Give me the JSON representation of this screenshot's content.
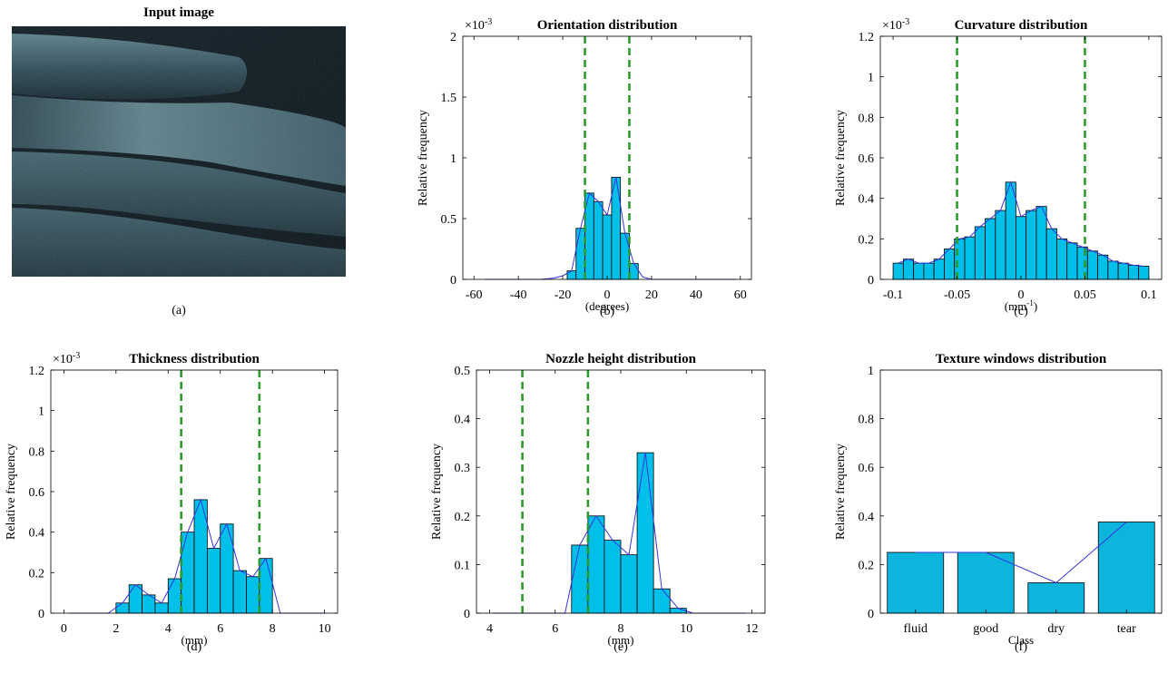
{
  "colors": {
    "bar_fill": "#00BFE8",
    "bar_fill_f": "#0CB5DC",
    "bar_stroke": "#000000",
    "poly": "#3535E0",
    "threshold": "#2E9A2E"
  },
  "photo": {
    "title": "Input image",
    "caption": "(a)"
  },
  "chart_data": [
    {
      "id": "b",
      "type": "bar",
      "title": "Orientation distribution",
      "xlabel": "(degrees)",
      "ylabel": "Relative frequency",
      "exponent": "×10",
      "exponent_power": "-3",
      "caption": "(b)",
      "xlim": [
        -65,
        65
      ],
      "ylim": [
        0,
        2
      ],
      "xticks": [
        -60,
        -40,
        -20,
        0,
        20,
        40,
        60
      ],
      "yticks": [
        0,
        0.5,
        1,
        1.5,
        2
      ],
      "ytick_labels": [
        "0",
        "0.5",
        "1",
        "1.5",
        "2"
      ],
      "bin_width": 4,
      "bin_centers": [
        -16,
        -12,
        -8,
        -4,
        0,
        4,
        8,
        12,
        16
      ],
      "values": [
        0.07,
        0.42,
        0.71,
        0.64,
        0.53,
        0.84,
        0.38,
        0.13,
        0.0
      ],
      "curve_x": [
        -55,
        -40,
        -30,
        -24,
        -20,
        -16,
        -12,
        -8,
        -4,
        0,
        4,
        8,
        12,
        16,
        20,
        25,
        40,
        58
      ],
      "curve_y": [
        0.0,
        0.0,
        0.0,
        0.01,
        0.03,
        0.07,
        0.42,
        0.71,
        0.64,
        0.53,
        0.84,
        0.38,
        0.13,
        0.02,
        0.0,
        0.0,
        0.0,
        0.0
      ],
      "thresholds": [
        -10,
        10
      ]
    },
    {
      "id": "c",
      "type": "bar",
      "title": "Curvature distribution",
      "xlabel": "(mm",
      "xlabel_power": "-1",
      "xlabel_suffix": ")",
      "ylabel": "Relative frequency",
      "exponent": "×10",
      "exponent_power": "-3",
      "caption": "(c)",
      "xlim": [
        -0.11,
        0.11
      ],
      "ylim": [
        0,
        1.2
      ],
      "xticks": [
        -0.1,
        -0.05,
        0,
        0.05,
        0.1
      ],
      "xtick_labels": [
        "-0.1",
        "-0.05",
        "0",
        "0.05",
        "0.1"
      ],
      "yticks": [
        0,
        0.2,
        0.4,
        0.6,
        0.8,
        1,
        1.2
      ],
      "ytick_labels": [
        "0",
        "0.2",
        "0.4",
        "0.6",
        "0.8",
        "1",
        "1.2"
      ],
      "bin_width": 0.008,
      "bin_centers": [
        -0.096,
        -0.088,
        -0.08,
        -0.072,
        -0.064,
        -0.056,
        -0.048,
        -0.04,
        -0.032,
        -0.024,
        -0.016,
        -0.008,
        0.0,
        0.008,
        0.016,
        0.024,
        0.032,
        0.04,
        0.048,
        0.056,
        0.064,
        0.072,
        0.08,
        0.088,
        0.096
      ],
      "values": [
        0.08,
        0.1,
        0.08,
        0.08,
        0.1,
        0.15,
        0.2,
        0.21,
        0.26,
        0.3,
        0.34,
        0.48,
        0.31,
        0.34,
        0.36,
        0.25,
        0.2,
        0.18,
        0.16,
        0.14,
        0.12,
        0.09,
        0.08,
        0.07,
        0.065
      ],
      "curve_x": [
        -0.096,
        -0.088,
        -0.08,
        -0.072,
        -0.064,
        -0.056,
        -0.048,
        -0.04,
        -0.032,
        -0.024,
        -0.016,
        -0.008,
        0.0,
        0.008,
        0.016,
        0.024,
        0.032,
        0.04,
        0.048,
        0.056,
        0.064,
        0.072,
        0.08,
        0.088,
        0.096
      ],
      "curve_y": [
        0.08,
        0.1,
        0.08,
        0.08,
        0.1,
        0.15,
        0.2,
        0.21,
        0.26,
        0.3,
        0.34,
        0.48,
        0.31,
        0.34,
        0.36,
        0.25,
        0.2,
        0.18,
        0.16,
        0.14,
        0.12,
        0.09,
        0.08,
        0.07,
        0.065
      ],
      "thresholds": [
        -0.05,
        0.05
      ]
    },
    {
      "id": "d",
      "type": "bar",
      "title": "Thickness distribution",
      "xlabel": "(mm)",
      "ylabel": "Relative frequency",
      "exponent": "×10",
      "exponent_power": "-3",
      "caption": "(d)",
      "xlim": [
        -0.5,
        10.5
      ],
      "ylim": [
        0,
        1.2
      ],
      "xticks": [
        0,
        2,
        4,
        6,
        8,
        10
      ],
      "yticks": [
        0,
        0.2,
        0.4,
        0.6,
        0.8,
        1,
        1.2
      ],
      "ytick_labels": [
        "0",
        "0.2",
        "0.4",
        "0.6",
        "0.8",
        "1",
        "1.2"
      ],
      "bin_width": 0.5,
      "bin_centers": [
        2.25,
        2.75,
        3.25,
        3.75,
        4.25,
        4.75,
        5.25,
        5.75,
        6.25,
        6.75,
        7.25,
        7.75
      ],
      "values": [
        0.05,
        0.14,
        0.09,
        0.05,
        0.17,
        0.4,
        0.56,
        0.32,
        0.44,
        0.21,
        0.18,
        0.27
      ],
      "curve_x": [
        0.2,
        1.7,
        2.25,
        2.75,
        3.25,
        3.75,
        4.25,
        4.75,
        5.25,
        5.75,
        6.25,
        6.75,
        7.25,
        7.75,
        8.3,
        10
      ],
      "curve_y": [
        0.0,
        0.0,
        0.05,
        0.14,
        0.09,
        0.05,
        0.17,
        0.4,
        0.56,
        0.32,
        0.44,
        0.21,
        0.18,
        0.27,
        0.0,
        0.0
      ],
      "thresholds": [
        4.5,
        7.5
      ]
    },
    {
      "id": "e",
      "type": "bar",
      "title": "Nozzle height distribution",
      "xlabel": "(mm)",
      "ylabel": "Relative frequency",
      "caption": "(e)",
      "xlim": [
        3.6,
        12.4
      ],
      "ylim": [
        0,
        0.5
      ],
      "xticks": [
        4,
        6,
        8,
        10,
        12
      ],
      "yticks": [
        0,
        0.1,
        0.2,
        0.3,
        0.4,
        0.5
      ],
      "ytick_labels": [
        "0",
        "0.1",
        "0.2",
        "0.3",
        "0.4",
        "0.5"
      ],
      "bin_width": 0.5,
      "bin_centers": [
        6.75,
        7.25,
        7.75,
        8.25,
        8.75,
        9.25,
        9.75
      ],
      "values": [
        0.14,
        0.2,
        0.15,
        0.12,
        0.33,
        0.05,
        0.01
      ],
      "curve_x": [
        4.1,
        6.3,
        6.75,
        7.25,
        7.75,
        8.25,
        8.75,
        9.25,
        9.75,
        10.2,
        11.8
      ],
      "curve_y": [
        0.0,
        0.0,
        0.14,
        0.2,
        0.15,
        0.12,
        0.33,
        0.05,
        0.01,
        0.0,
        0.0
      ],
      "thresholds": [
        5,
        7
      ]
    },
    {
      "id": "f",
      "type": "bar",
      "title": "Texture windows distribution",
      "xlabel": "Class",
      "ylabel": "Relative frequency",
      "caption": "(f)",
      "ylim": [
        0,
        1
      ],
      "yticks": [
        0,
        0.2,
        0.4,
        0.6,
        0.8,
        1
      ],
      "ytick_labels": [
        "0",
        "0.2",
        "0.4",
        "0.6",
        "0.8",
        "1"
      ],
      "categories": [
        "fluid",
        "good",
        "dry",
        "tear"
      ],
      "values": [
        0.25,
        0.25,
        0.125,
        0.375
      ]
    }
  ]
}
